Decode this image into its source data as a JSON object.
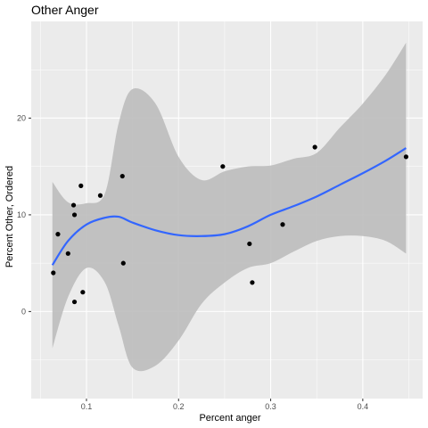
{
  "chart_data": {
    "type": "scatter",
    "title": "Other Anger",
    "xlabel": "Percent anger",
    "ylabel": "Percent Other, Ordered",
    "xlim": [
      0.04,
      0.465
    ],
    "ylim": [
      -9.0,
      30.0
    ],
    "x_ticks": [
      0.1,
      0.2,
      0.3,
      0.4
    ],
    "x_tick_labels": [
      "0.1",
      "0.2",
      "0.3",
      "0.4"
    ],
    "y_ticks": [
      0,
      10,
      20
    ],
    "y_tick_labels": [
      "0",
      "10",
      "20"
    ],
    "grid": true,
    "legend": "none",
    "colors": {
      "panel": "#ebebeb",
      "grid_major": "#ffffff",
      "point": "#000000",
      "smooth_line": "#3366ff",
      "ribbon": "#bdbdbd"
    },
    "points": [
      {
        "x": 0.064,
        "y": 4
      },
      {
        "x": 0.069,
        "y": 8
      },
      {
        "x": 0.08,
        "y": 6
      },
      {
        "x": 0.086,
        "y": 11
      },
      {
        "x": 0.087,
        "y": 10
      },
      {
        "x": 0.087,
        "y": 1
      },
      {
        "x": 0.094,
        "y": 13
      },
      {
        "x": 0.096,
        "y": 2
      },
      {
        "x": 0.115,
        "y": 12
      },
      {
        "x": 0.139,
        "y": 14
      },
      {
        "x": 0.14,
        "y": 5
      },
      {
        "x": 0.248,
        "y": 15
      },
      {
        "x": 0.277,
        "y": 7
      },
      {
        "x": 0.28,
        "y": 3
      },
      {
        "x": 0.313,
        "y": 9
      },
      {
        "x": 0.348,
        "y": 17
      },
      {
        "x": 0.447,
        "y": 16
      }
    ],
    "smooth": {
      "x": [
        0.063,
        0.08,
        0.1,
        0.12,
        0.135,
        0.15,
        0.175,
        0.2,
        0.225,
        0.25,
        0.275,
        0.3,
        0.325,
        0.35,
        0.375,
        0.4,
        0.425,
        0.447
      ],
      "fit": [
        4.8,
        7.3,
        9.0,
        9.7,
        9.8,
        9.2,
        8.4,
        7.9,
        7.8,
        8.0,
        8.8,
        10.0,
        10.9,
        11.9,
        13.1,
        14.3,
        15.6,
        16.9
      ],
      "lower": [
        -3.8,
        1.5,
        4.5,
        3.0,
        -1.5,
        -5.8,
        -5.6,
        -3.0,
        0.8,
        3.0,
        4.5,
        5.0,
        6.2,
        7.3,
        7.8,
        7.8,
        7.3,
        6.0
      ],
      "upper": [
        13.4,
        11.3,
        11.2,
        12.2,
        19.5,
        23.0,
        21.5,
        16.0,
        13.6,
        14.5,
        15.0,
        15.1,
        15.8,
        16.4,
        19.0,
        21.5,
        24.5,
        27.8
      ]
    }
  }
}
